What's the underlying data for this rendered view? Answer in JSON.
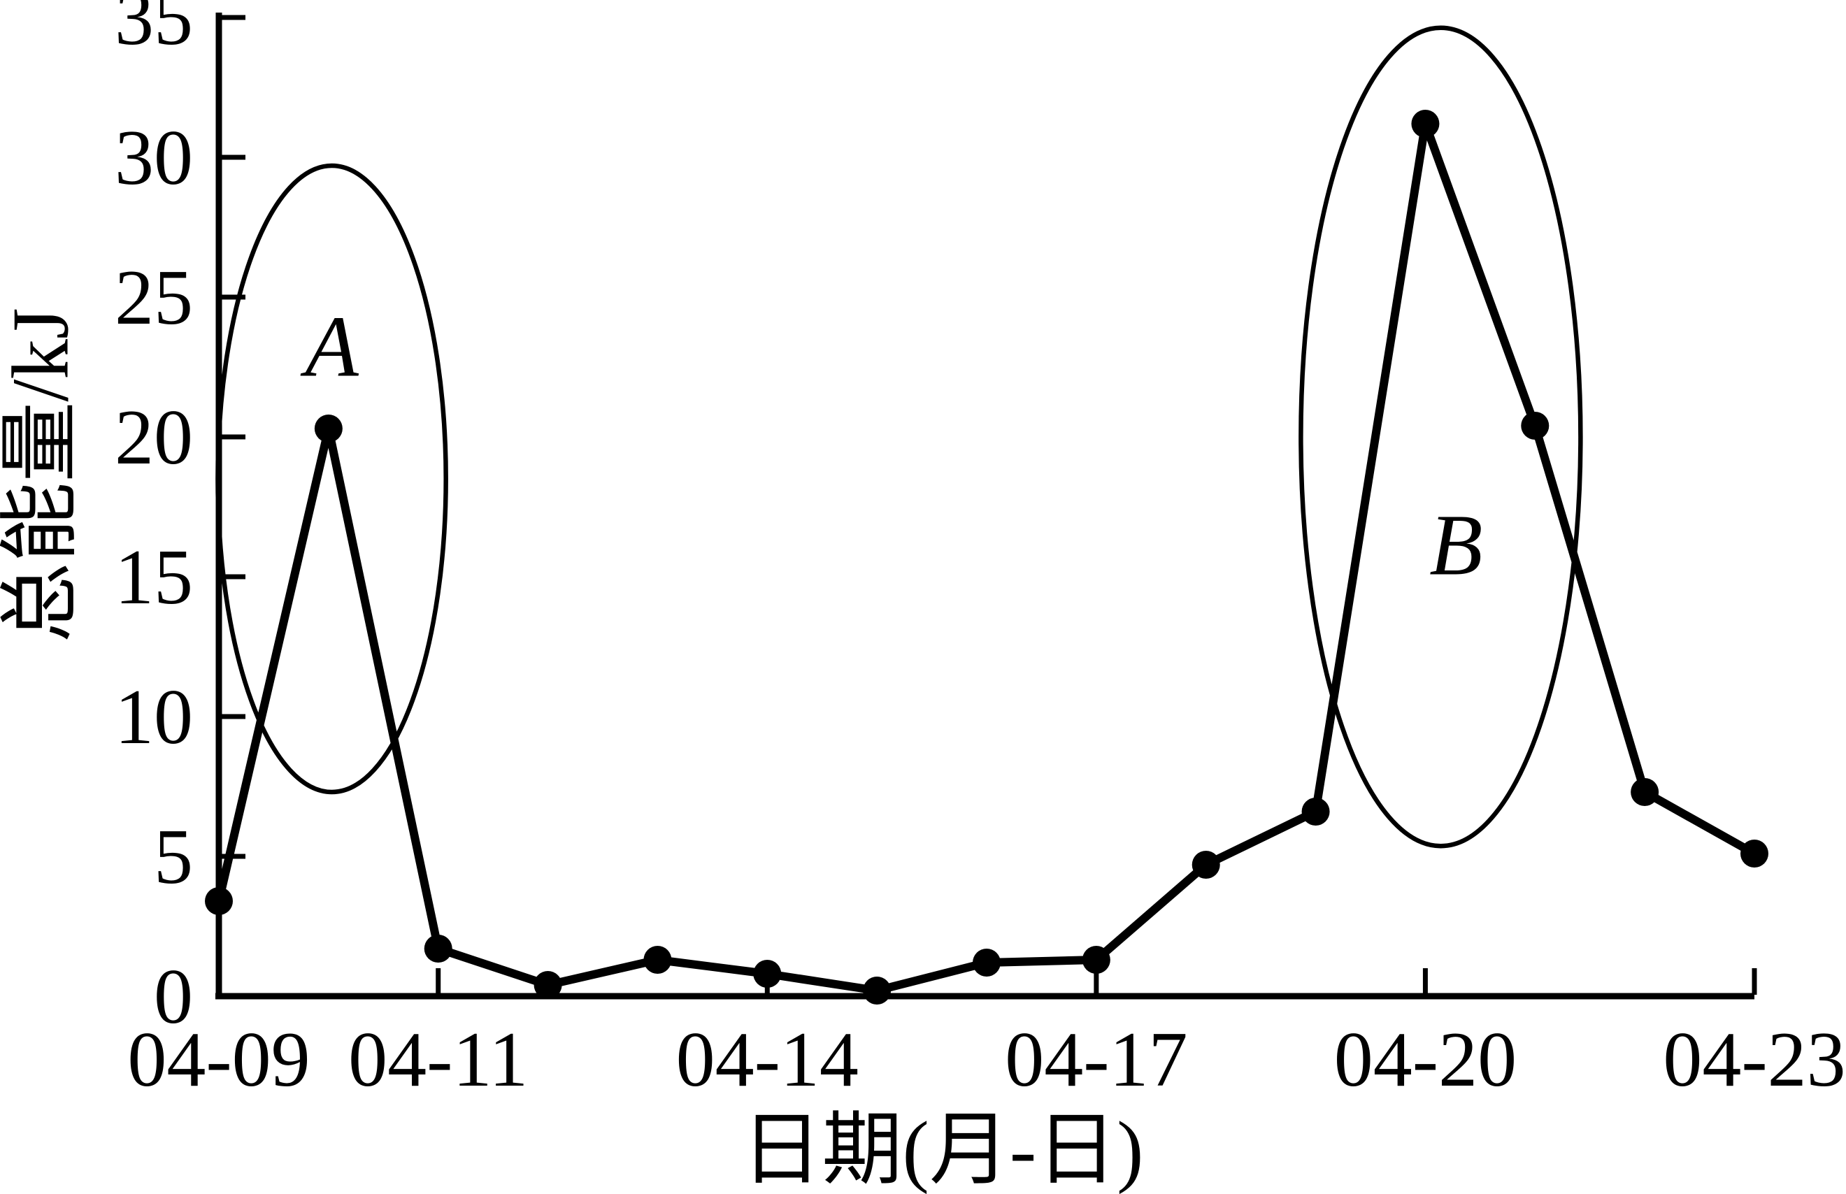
{
  "chart_data": {
    "type": "line",
    "title": "",
    "xlabel": "日期(月-日)",
    "ylabel": "总能量/kJ",
    "grid": false,
    "legend_position": "none",
    "line_color": "#000000",
    "marker": "filled-circle",
    "ylim": [
      0,
      35
    ],
    "yticks": [
      0,
      5,
      10,
      15,
      20,
      25,
      30,
      35
    ],
    "xlim_days": [
      9,
      23
    ],
    "xticks": [
      {
        "day": 9,
        "label": "04-09"
      },
      {
        "day": 11,
        "label": "04-11"
      },
      {
        "day": 14,
        "label": "04-14"
      },
      {
        "day": 17,
        "label": "04-17"
      },
      {
        "day": 20,
        "label": "04-20"
      },
      {
        "day": 23,
        "label": "04-23"
      }
    ],
    "series": [
      {
        "x_days": [
          9,
          10,
          11,
          12,
          13,
          14,
          15,
          16,
          17,
          18,
          19,
          20,
          21,
          22,
          23
        ],
        "dates": [
          "04-09",
          "04-10",
          "04-11",
          "04-12",
          "04-13",
          "04-14",
          "04-15",
          "04-16",
          "04-17",
          "04-18",
          "04-19",
          "04-20",
          "04-21",
          "04-22",
          "04-23"
        ],
        "values": [
          3.4,
          20.3,
          1.7,
          0.4,
          1.3,
          0.8,
          0.2,
          1.2,
          1.3,
          4.7,
          6.6,
          31.2,
          20.4,
          7.3,
          5.1
        ]
      }
    ],
    "annotations": [
      {
        "label": "A",
        "ellipse": {
          "cx_day": 10.03,
          "cy_val": 18.5,
          "rx_days": 1.04,
          "ry_val": 11.2
        },
        "label_pos": {
          "day": 10.03,
          "val": 23.2
        }
      },
      {
        "label": "B",
        "ellipse": {
          "cx_day": 20.14,
          "cy_val": 20.0,
          "rx_days": 1.275,
          "ry_val": 14.63
        },
        "label_pos": {
          "day": 20.28,
          "val": 16.1
        }
      }
    ]
  }
}
